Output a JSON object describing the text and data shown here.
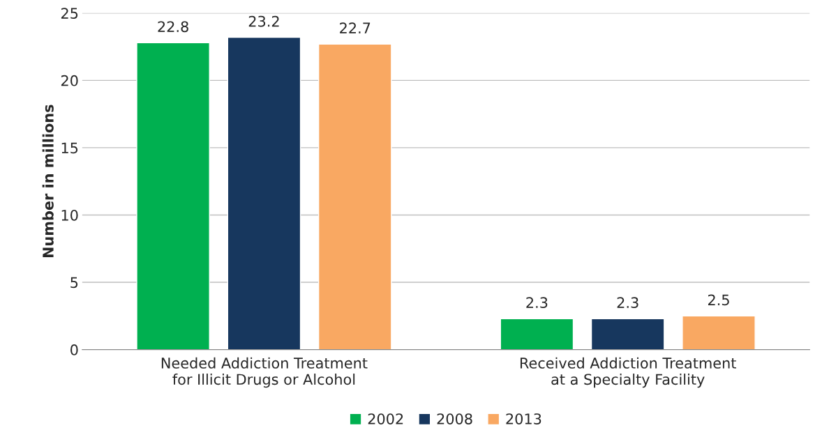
{
  "chart_data": {
    "type": "bar",
    "ylabel": "Number in millions",
    "categories": [
      "Needed Addiction Treatment for Illicit Drugs or Alcohol",
      "Received Addiction Treatment at a Specialty Facility"
    ],
    "series": [
      {
        "name": "2002",
        "color": "#00b050",
        "values": [
          22.8,
          2.3
        ]
      },
      {
        "name": "2008",
        "color": "#17375e",
        "values": [
          23.2,
          2.3
        ]
      },
      {
        "name": "2013",
        "color": "#f9a862",
        "values": [
          22.7,
          2.5
        ]
      }
    ],
    "ylim": [
      0,
      25
    ],
    "yticks": [
      0,
      5,
      10,
      15,
      20,
      25
    ],
    "grid": "y",
    "legend": "bottom",
    "data_labels": true
  }
}
